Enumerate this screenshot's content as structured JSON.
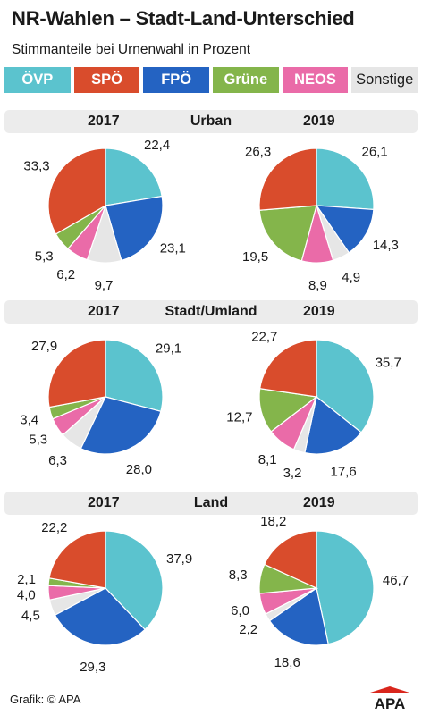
{
  "title": "NR-Wahlen – Stadt-Land-Unterschied",
  "subtitle": "Stimmanteile bei Urnenwahl in Prozent",
  "legend": [
    {
      "name": "ÖVP",
      "color": "#5bc3ce"
    },
    {
      "name": "SPÖ",
      "color": "#d94c2c"
    },
    {
      "name": "FPÖ",
      "color": "#2463c2"
    },
    {
      "name": "Grüne",
      "color": "#84b54b"
    },
    {
      "name": "NEOS",
      "color": "#ea6ba8"
    },
    {
      "name": "Sonstige",
      "color": "#e6e6e6"
    }
  ],
  "sections": [
    {
      "region": "Urban",
      "year_left": "2017",
      "year_right": "2019"
    },
    {
      "region": "Stadt/Umland",
      "year_left": "2017",
      "year_right": "2019"
    },
    {
      "region": "Land",
      "year_left": "2017",
      "year_right": "2019"
    }
  ],
  "footer": {
    "source": "Grafik: © APA",
    "logo_text": "APA"
  },
  "chart_data": [
    {
      "type": "pie",
      "region": "Urban",
      "year": "2017",
      "slices": [
        {
          "party": "ÖVP",
          "value": 22.4,
          "label": "22,4"
        },
        {
          "party": "FPÖ",
          "value": 23.1,
          "label": "23,1"
        },
        {
          "party": "Sonstige",
          "value": 9.7,
          "label": "9,7"
        },
        {
          "party": "NEOS",
          "value": 6.2,
          "label": "6,2"
        },
        {
          "party": "Grüne",
          "value": 5.3,
          "label": "5,3"
        },
        {
          "party": "SPÖ",
          "value": 33.3,
          "label": "33,3"
        }
      ]
    },
    {
      "type": "pie",
      "region": "Urban",
      "year": "2019",
      "slices": [
        {
          "party": "ÖVP",
          "value": 26.1,
          "label": "26,1"
        },
        {
          "party": "FPÖ",
          "value": 14.3,
          "label": "14,3"
        },
        {
          "party": "Sonstige",
          "value": 4.9,
          "label": "4,9"
        },
        {
          "party": "NEOS",
          "value": 8.9,
          "label": "8,9"
        },
        {
          "party": "Grüne",
          "value": 19.5,
          "label": "19,5"
        },
        {
          "party": "SPÖ",
          "value": 26.3,
          "label": "26,3"
        }
      ]
    },
    {
      "type": "pie",
      "region": "Stadt/Umland",
      "year": "2017",
      "slices": [
        {
          "party": "ÖVP",
          "value": 29.1,
          "label": "29,1"
        },
        {
          "party": "FPÖ",
          "value": 28.0,
          "label": "28,0"
        },
        {
          "party": "Sonstige",
          "value": 6.3,
          "label": "6,3"
        },
        {
          "party": "NEOS",
          "value": 5.3,
          "label": "5,3"
        },
        {
          "party": "Grüne",
          "value": 3.4,
          "label": "3,4"
        },
        {
          "party": "SPÖ",
          "value": 27.9,
          "label": "27,9"
        }
      ]
    },
    {
      "type": "pie",
      "region": "Stadt/Umland",
      "year": "2019",
      "slices": [
        {
          "party": "ÖVP",
          "value": 35.7,
          "label": "35,7"
        },
        {
          "party": "FPÖ",
          "value": 17.6,
          "label": "17,6"
        },
        {
          "party": "Sonstige",
          "value": 3.2,
          "label": "3,2"
        },
        {
          "party": "NEOS",
          "value": 8.1,
          "label": "8,1"
        },
        {
          "party": "Grüne",
          "value": 12.7,
          "label": "12,7"
        },
        {
          "party": "SPÖ",
          "value": 22.7,
          "label": "22,7"
        }
      ]
    },
    {
      "type": "pie",
      "region": "Land",
      "year": "2017",
      "slices": [
        {
          "party": "ÖVP",
          "value": 37.9,
          "label": "37,9"
        },
        {
          "party": "FPÖ",
          "value": 29.3,
          "label": "29,3"
        },
        {
          "party": "Sonstige",
          "value": 4.5,
          "label": "4,5"
        },
        {
          "party": "NEOS",
          "value": 4.0,
          "label": "4,0"
        },
        {
          "party": "Grüne",
          "value": 2.1,
          "label": "2,1"
        },
        {
          "party": "SPÖ",
          "value": 22.2,
          "label": "22,2"
        }
      ]
    },
    {
      "type": "pie",
      "region": "Land",
      "year": "2019",
      "slices": [
        {
          "party": "ÖVP",
          "value": 46.7,
          "label": "46,7"
        },
        {
          "party": "FPÖ",
          "value": 18.6,
          "label": "18,6"
        },
        {
          "party": "Sonstige",
          "value": 2.2,
          "label": "2,2"
        },
        {
          "party": "NEOS",
          "value": 6.0,
          "label": "6,0"
        },
        {
          "party": "Grüne",
          "value": 8.3,
          "label": "8,3"
        },
        {
          "party": "SPÖ",
          "value": 18.2,
          "label": "18,2"
        }
      ]
    }
  ]
}
